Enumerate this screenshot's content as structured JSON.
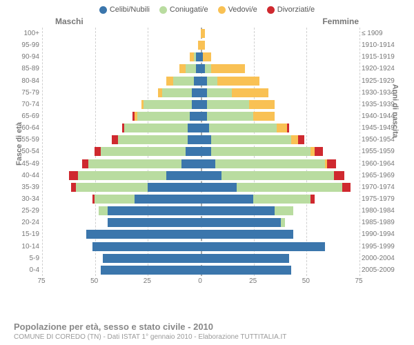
{
  "legend": [
    {
      "label": "Celibi/Nubili",
      "color": "#3b76ac"
    },
    {
      "label": "Coniugati/e",
      "color": "#b9dca0"
    },
    {
      "label": "Vedovi/e",
      "color": "#f9c154"
    },
    {
      "label": "Divorziati/e",
      "color": "#cf292f"
    }
  ],
  "headers": {
    "left": "Maschi",
    "right": "Femmine"
  },
  "y_title_left": "Fasce di età",
  "y_title_right": "Anni di nascita",
  "x_ticks": [
    75,
    50,
    25,
    0,
    25,
    50,
    75
  ],
  "x_max": 75,
  "title": "Popolazione per età, sesso e stato civile - 2010",
  "subtitle": "COMUNE DI COREDO (TN) - Dati ISTAT 1° gennaio 2010 - Elaborazione TUTTITALIA.IT",
  "colors": {
    "celibi": "#3b76ac",
    "coniugati": "#b9dca0",
    "vedovi": "#f9c154",
    "divorziati": "#cf292f",
    "grid": "#cfcfcf",
    "center": "#aaa"
  },
  "rows": [
    {
      "age": "100+",
      "birth": "≤ 1909",
      "m": [
        0,
        0,
        0,
        0
      ],
      "f": [
        0,
        0,
        2,
        0
      ]
    },
    {
      "age": "95-99",
      "birth": "1910-1914",
      "m": [
        0,
        0,
        1,
        0
      ],
      "f": [
        0,
        0,
        2,
        0
      ]
    },
    {
      "age": "90-94",
      "birth": "1915-1919",
      "m": [
        2,
        1,
        2,
        0
      ],
      "f": [
        1,
        0,
        4,
        0
      ]
    },
    {
      "age": "85-89",
      "birth": "1920-1924",
      "m": [
        2,
        5,
        3,
        0
      ],
      "f": [
        2,
        3,
        16,
        0
      ]
    },
    {
      "age": "80-84",
      "birth": "1925-1929",
      "m": [
        3,
        10,
        3,
        0
      ],
      "f": [
        3,
        5,
        20,
        0
      ]
    },
    {
      "age": "75-79",
      "birth": "1930-1934",
      "m": [
        4,
        14,
        2,
        0
      ],
      "f": [
        3,
        12,
        17,
        0
      ]
    },
    {
      "age": "70-74",
      "birth": "1935-1939",
      "m": [
        4,
        23,
        1,
        0
      ],
      "f": [
        3,
        20,
        12,
        0
      ]
    },
    {
      "age": "65-69",
      "birth": "1940-1944",
      "m": [
        5,
        25,
        1,
        1
      ],
      "f": [
        3,
        22,
        10,
        0
      ]
    },
    {
      "age": "60-64",
      "birth": "1945-1949",
      "m": [
        6,
        30,
        0,
        1
      ],
      "f": [
        4,
        32,
        5,
        1
      ]
    },
    {
      "age": "55-59",
      "birth": "1950-1954",
      "m": [
        6,
        33,
        0,
        3
      ],
      "f": [
        5,
        38,
        3,
        3
      ]
    },
    {
      "age": "50-54",
      "birth": "1955-1959",
      "m": [
        7,
        40,
        0,
        3
      ],
      "f": [
        5,
        47,
        2,
        4
      ]
    },
    {
      "age": "45-49",
      "birth": "1960-1964",
      "m": [
        9,
        44,
        0,
        3
      ],
      "f": [
        7,
        52,
        1,
        4
      ]
    },
    {
      "age": "40-44",
      "birth": "1965-1969",
      "m": [
        16,
        42,
        0,
        4
      ],
      "f": [
        10,
        53,
        0,
        5
      ]
    },
    {
      "age": "35-39",
      "birth": "1970-1974",
      "m": [
        25,
        34,
        0,
        2
      ],
      "f": [
        17,
        50,
        0,
        4
      ]
    },
    {
      "age": "30-34",
      "birth": "1975-1979",
      "m": [
        31,
        19,
        0,
        1
      ],
      "f": [
        25,
        27,
        0,
        2
      ]
    },
    {
      "age": "25-29",
      "birth": "1980-1984",
      "m": [
        44,
        4,
        0,
        0
      ],
      "f": [
        35,
        9,
        0,
        0
      ]
    },
    {
      "age": "20-24",
      "birth": "1985-1989",
      "m": [
        44,
        0,
        0,
        0
      ],
      "f": [
        38,
        2,
        0,
        0
      ]
    },
    {
      "age": "15-19",
      "birth": "1990-1994",
      "m": [
        54,
        0,
        0,
        0
      ],
      "f": [
        44,
        0,
        0,
        0
      ]
    },
    {
      "age": "10-14",
      "birth": "1995-1999",
      "m": [
        51,
        0,
        0,
        0
      ],
      "f": [
        59,
        0,
        0,
        0
      ]
    },
    {
      "age": "5-9",
      "birth": "2000-2004",
      "m": [
        46,
        0,
        0,
        0
      ],
      "f": [
        42,
        0,
        0,
        0
      ]
    },
    {
      "age": "0-4",
      "birth": "2005-2009",
      "m": [
        47,
        0,
        0,
        0
      ],
      "f": [
        43,
        0,
        0,
        0
      ]
    }
  ]
}
